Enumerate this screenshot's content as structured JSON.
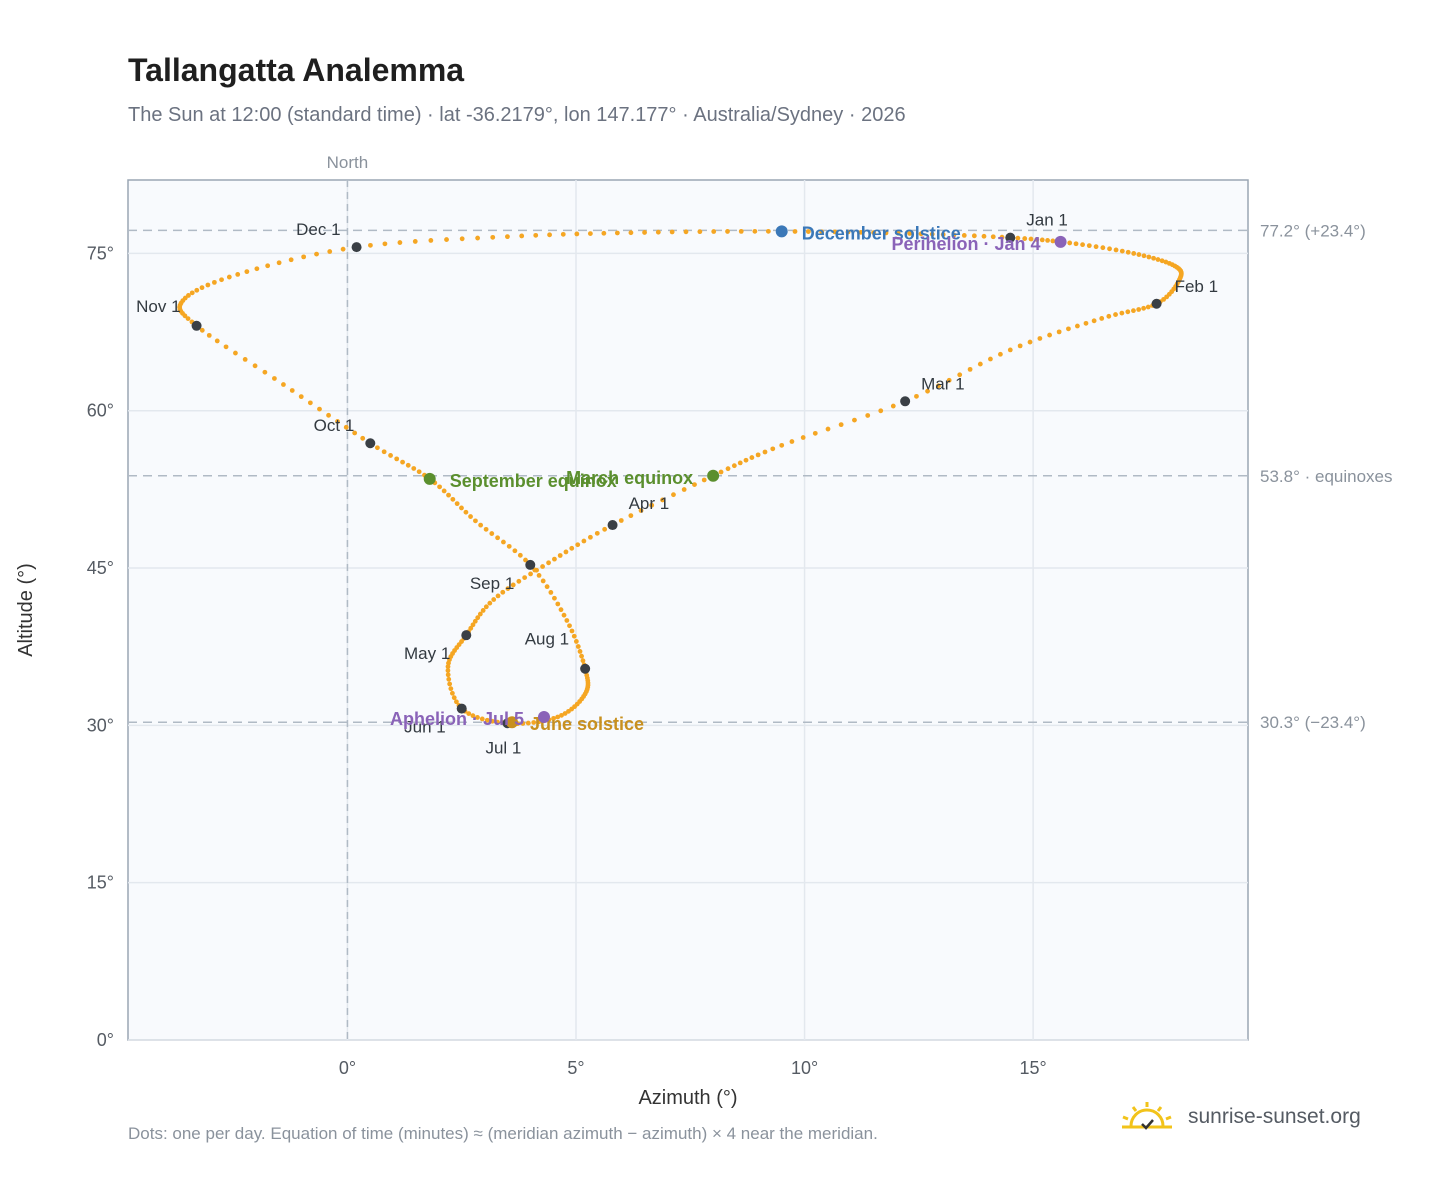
{
  "header": {
    "title": "Tallangatta Analemma",
    "subtitle": "The Sun at 12:00 (standard time) · lat -36.2179°, lon 147.177° · Australia/Sydney · 2026"
  },
  "footnote": "Dots: one per day. Equation of time (minutes) ≈ (meridian azimuth − azimuth) × 4 near the meridian.",
  "brand": {
    "name": "sunrise-sunset.org",
    "logo_icon": "sun-logo-icon"
  },
  "colors": {
    "path": "#f5a623",
    "month_dot": "#3a3f45",
    "december_solstice": "#3b78b8",
    "june_solstice": "#c8901f",
    "equinox": "#5b8f2e",
    "perihelion": "#8a63b8",
    "plot_bg": "#f8fafd",
    "grid": "#e3e8ee",
    "reference": "#b0bac5"
  },
  "chart_data": {
    "type": "scatter",
    "title": "Tallangatta Analemma",
    "xlabel": "Azimuth (°)",
    "ylabel": "Altitude (°)",
    "xlim": [
      -4.8,
      19.7
    ],
    "ylim": [
      0,
      82
    ],
    "x_ticks": [
      {
        "v": 0,
        "label": "0°"
      },
      {
        "v": 5,
        "label": "5°"
      },
      {
        "v": 10,
        "label": "10°"
      },
      {
        "v": 15,
        "label": "15°"
      }
    ],
    "y_ticks": [
      {
        "v": 0,
        "label": "0°"
      },
      {
        "v": 15,
        "label": "15°"
      },
      {
        "v": 30,
        "label": "30°"
      },
      {
        "v": 45,
        "label": "45°"
      },
      {
        "v": 60,
        "label": "60°"
      },
      {
        "v": 75,
        "label": "75°"
      }
    ],
    "grid": true,
    "north_line": {
      "x": 0,
      "label": "North"
    },
    "reference_lines": [
      {
        "y": 77.2,
        "label": "77.2° (+23.4°)"
      },
      {
        "y": 53.8,
        "label": "53.8° · equinoxes"
      },
      {
        "y": 30.3,
        "label": "30.3° (−23.4°)"
      }
    ],
    "month_markers": [
      {
        "label": "Jan 1",
        "x": 14.5,
        "y": 76.5
      },
      {
        "label": "Feb 1",
        "x": 17.7,
        "y": 70.2
      },
      {
        "label": "Mar 1",
        "x": 12.2,
        "y": 60.9
      },
      {
        "label": "Apr 1",
        "x": 5.8,
        "y": 49.1
      },
      {
        "label": "May 1",
        "x": 2.6,
        "y": 38.6
      },
      {
        "label": "Jun 1",
        "x": 2.5,
        "y": 31.6
      },
      {
        "label": "Jul 1",
        "x": 3.5,
        "y": 30.2
      },
      {
        "label": "Aug 1",
        "x": 5.2,
        "y": 35.4
      },
      {
        "label": "Sep 1",
        "x": 4.0,
        "y": 45.3
      },
      {
        "label": "Oct 1",
        "x": 0.5,
        "y": 56.9
      },
      {
        "label": "Nov 1",
        "x": -3.3,
        "y": 68.1
      },
      {
        "label": "Dec 1",
        "x": 0.2,
        "y": 75.6
      }
    ],
    "events": [
      {
        "label": "December solstice",
        "x": 9.5,
        "y": 77.1,
        "kind": "december_solstice"
      },
      {
        "label": "Perihelion · Jan 4",
        "x": 15.6,
        "y": 76.1,
        "kind": "perihelion"
      },
      {
        "label": "March equinox",
        "x": 8.0,
        "y": 53.8,
        "kind": "equinox"
      },
      {
        "label": "September equinox",
        "x": 1.8,
        "y": 53.5,
        "kind": "equinox"
      },
      {
        "label": "June solstice",
        "x": 3.6,
        "y": 30.3,
        "kind": "june_solstice"
      },
      {
        "label": "Aphelion · Jul 5",
        "x": 4.3,
        "y": 30.8,
        "kind": "perihelion"
      }
    ],
    "daily_path": [
      [
        14.5,
        76.5
      ],
      [
        15.8,
        76.0
      ],
      [
        17.2,
        75.0
      ],
      [
        18.1,
        73.8
      ],
      [
        18.2,
        72.5
      ],
      [
        17.7,
        70.2
      ],
      [
        16.5,
        68.8
      ],
      [
        14.5,
        65.8
      ],
      [
        12.2,
        60.9
      ],
      [
        9.5,
        56.7
      ],
      [
        8.0,
        53.8
      ],
      [
        5.8,
        49.1
      ],
      [
        4.4,
        45.5
      ],
      [
        3.2,
        42.0
      ],
      [
        2.6,
        38.6
      ],
      [
        2.2,
        35.6
      ],
      [
        2.5,
        31.6
      ],
      [
        3.5,
        30.2
      ],
      [
        4.6,
        30.8
      ],
      [
        5.2,
        33.0
      ],
      [
        5.2,
        35.4
      ],
      [
        4.8,
        40.0
      ],
      [
        4.0,
        45.3
      ],
      [
        2.8,
        49.5
      ],
      [
        1.8,
        53.5
      ],
      [
        0.5,
        56.9
      ],
      [
        -1.4,
        62.5
      ],
      [
        -3.3,
        68.1
      ],
      [
        -3.6,
        70.5
      ],
      [
        -2.4,
        73.0
      ],
      [
        0.2,
        75.6
      ],
      [
        3.5,
        76.6
      ],
      [
        6.5,
        77.0
      ],
      [
        9.5,
        77.1
      ],
      [
        12.3,
        76.9
      ],
      [
        14.5,
        76.5
      ]
    ]
  }
}
